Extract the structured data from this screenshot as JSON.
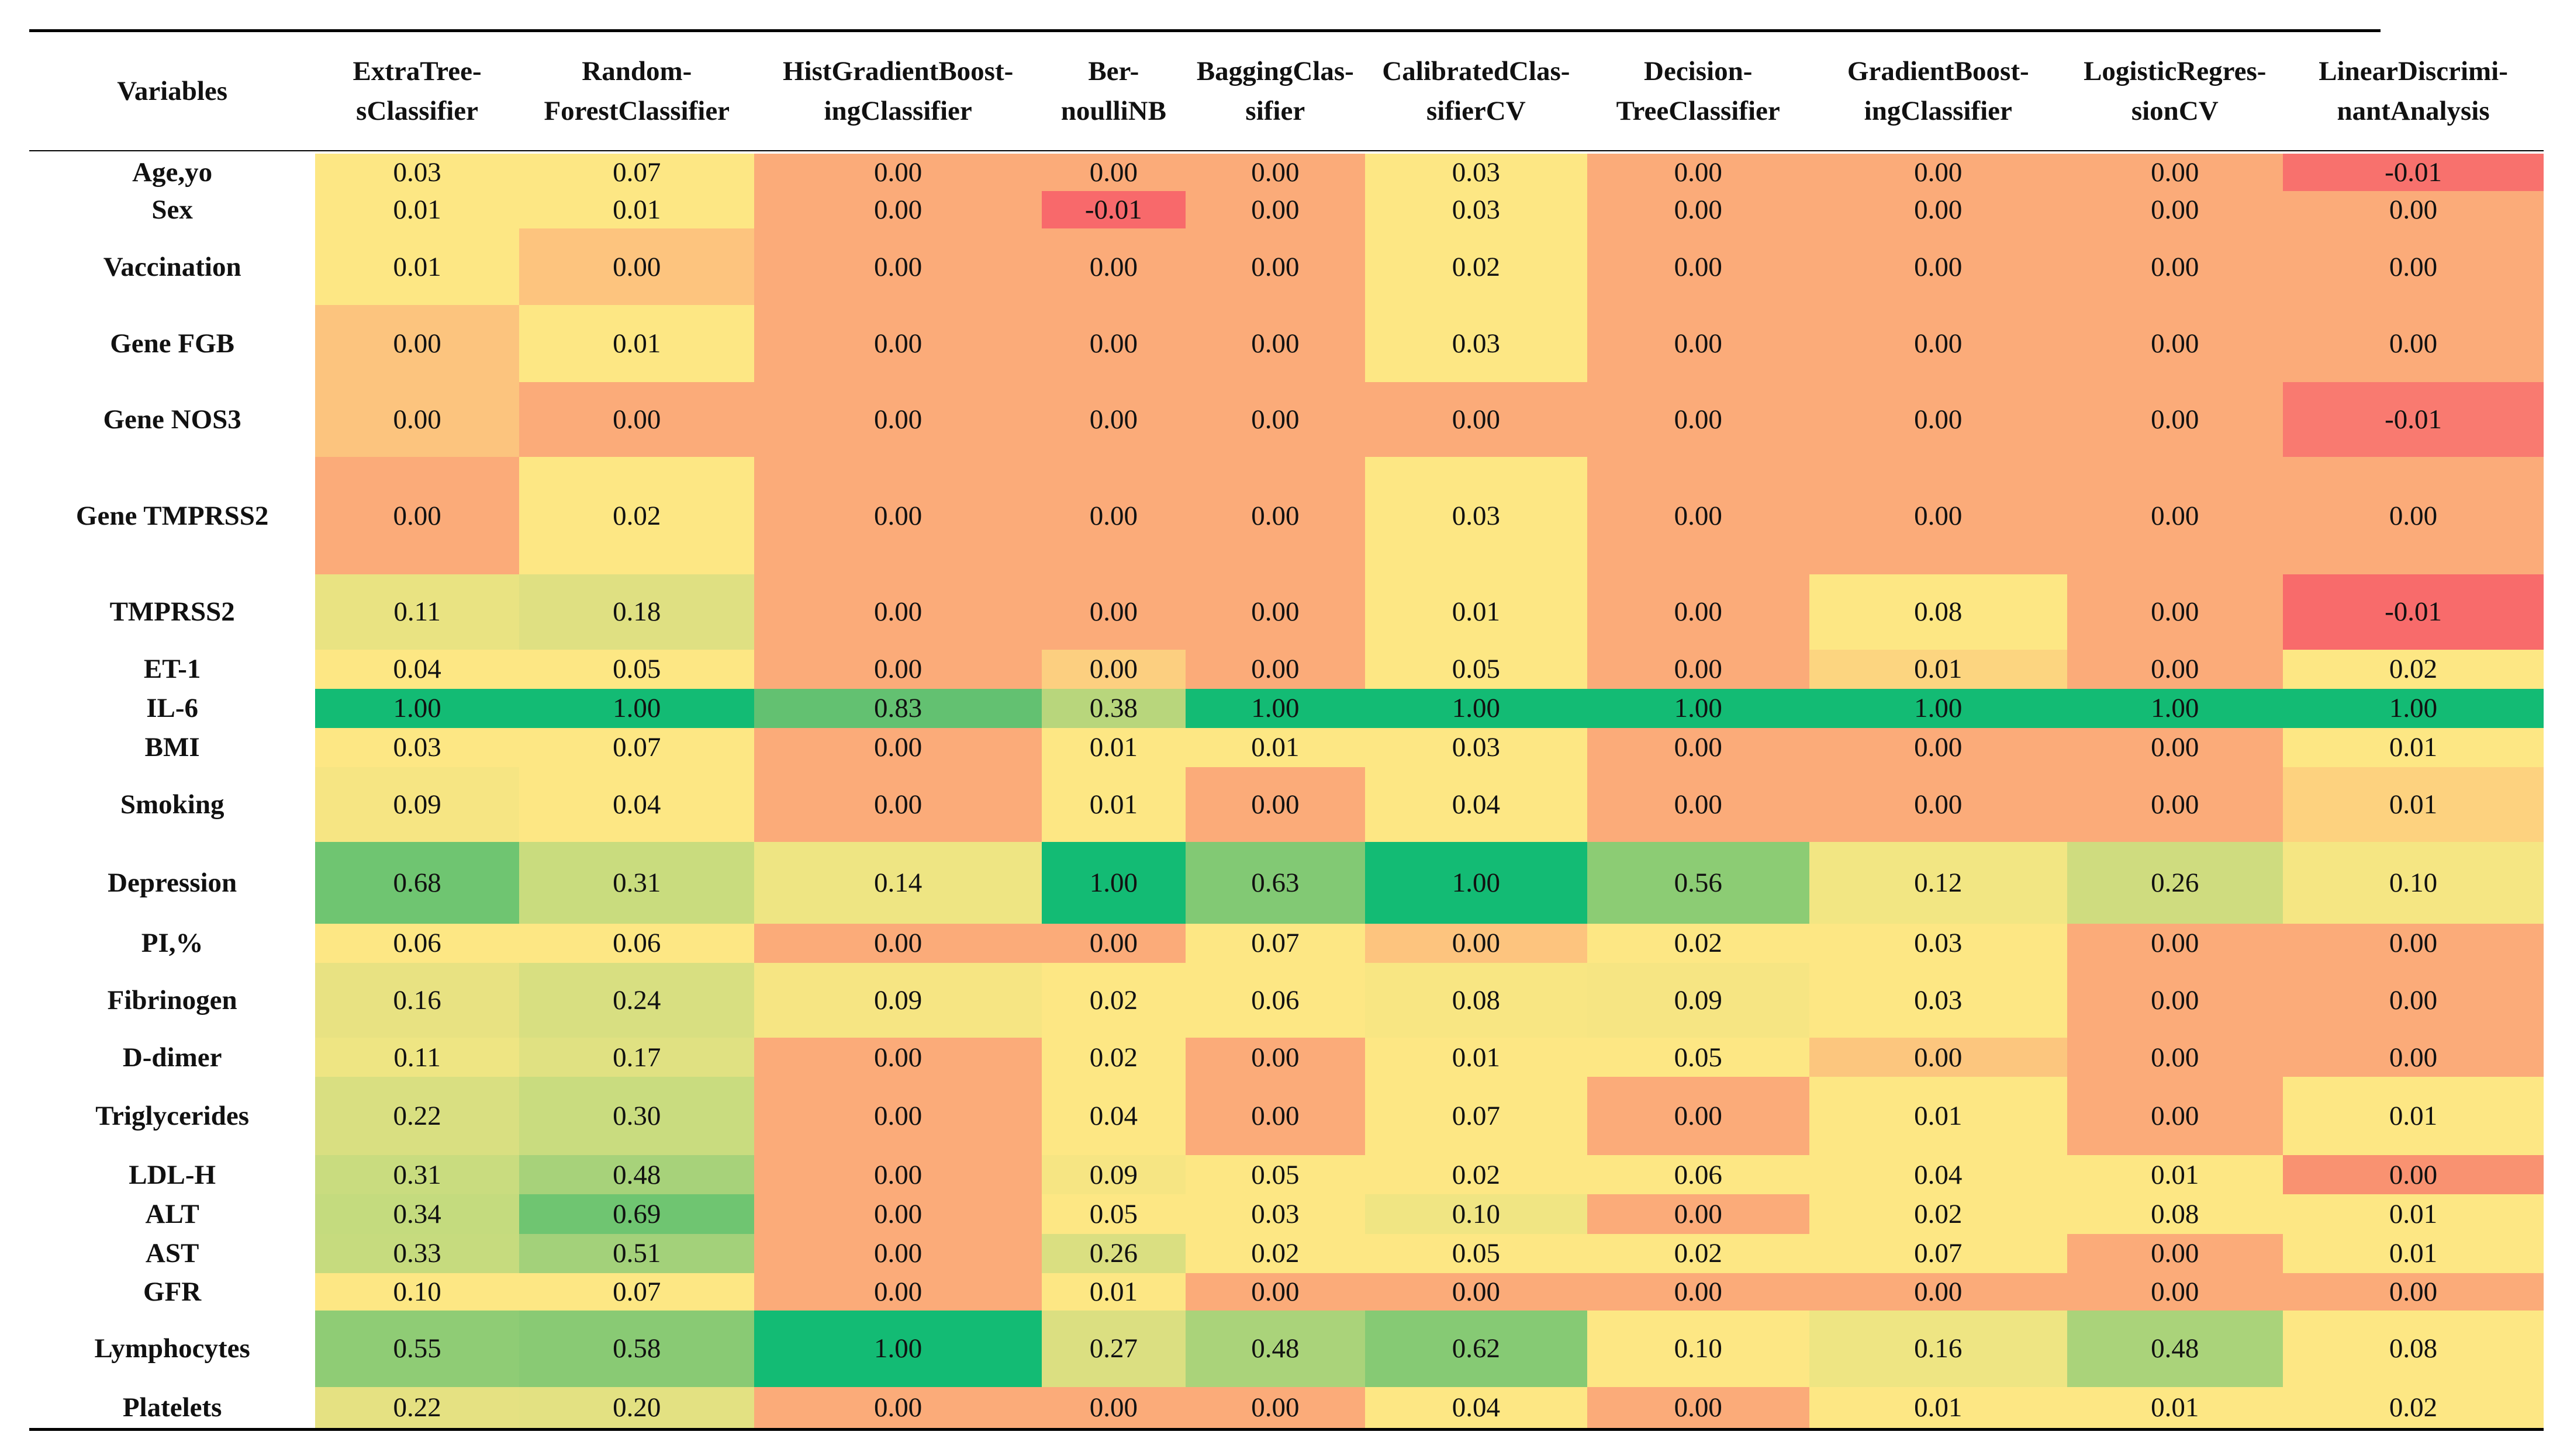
{
  "table": {
    "header": [
      [
        "Variables"
      ],
      [
        "ExtraTree-",
        "sClassifier"
      ],
      [
        "Random-",
        "ForestClassifier"
      ],
      [
        "HistGradientBoost-",
        "ingClassifier"
      ],
      [
        "Ber-",
        "noulliNB"
      ],
      [
        "BaggingClas-",
        "sifier"
      ],
      [
        "CalibratedClas-",
        "sifierCV"
      ],
      [
        "Decision-",
        "TreeClassifier"
      ],
      [
        "GradientBoost-",
        "ingClassifier"
      ],
      [
        "LogisticRegres-",
        "sionCV"
      ],
      [
        "LinearDiscrimi-",
        "nantAnalysis"
      ]
    ],
    "rows": [
      {
        "variable": "Age,yo",
        "values": [
          "0.03",
          "0.07",
          "0.00",
          "0.00",
          "0.00",
          "0.03",
          "0.00",
          "0.00",
          "0.00",
          "-0.01"
        ],
        "colors": [
          "#fde784",
          "#fde784",
          "#fbab79",
          "#fbab79",
          "#fbab79",
          "#fde784",
          "#fbab79",
          "#fbab79",
          "#fbab79",
          "#f8716d"
        ]
      },
      {
        "variable": "Sex",
        "values": [
          "0.01",
          "0.01",
          "0.00",
          "-0.01",
          "0.00",
          "0.03",
          "0.00",
          "0.00",
          "0.00",
          "0.00"
        ],
        "colors": [
          "#fde784",
          "#fde784",
          "#fbab79",
          "#f8696b",
          "#fbab79",
          "#fde784",
          "#fbab79",
          "#fbab79",
          "#fbab79",
          "#fbab79"
        ]
      },
      {
        "variable": "Vaccination",
        "values": [
          "0.01",
          "0.00",
          "0.00",
          "0.00",
          "0.00",
          "0.02",
          "0.00",
          "0.00",
          "0.00",
          "0.00"
        ],
        "colors": [
          "#fde784",
          "#fdc47e",
          "#fbab79",
          "#fbab79",
          "#fbab79",
          "#fde784",
          "#fbab79",
          "#fbab79",
          "#fbab79",
          "#fbab79"
        ]
      },
      {
        "variable": "Gene FGB",
        "values": [
          "0.00",
          "0.01",
          "0.00",
          "0.00",
          "0.00",
          "0.03",
          "0.00",
          "0.00",
          "0.00",
          "0.00"
        ],
        "colors": [
          "#fcc47e",
          "#fde784",
          "#fbab79",
          "#fbab79",
          "#fbab79",
          "#fde784",
          "#fbab79",
          "#fbab79",
          "#fbab79",
          "#fbab79"
        ]
      },
      {
        "variable": "Gene NOS3",
        "values": [
          "0.00",
          "0.00",
          "0.00",
          "0.00",
          "0.00",
          "0.00",
          "0.00",
          "0.00",
          "0.00",
          "-0.01"
        ],
        "colors": [
          "#fcc47e",
          "#fbab79",
          "#fbab79",
          "#fbab79",
          "#fbab79",
          "#fbab79",
          "#fbab79",
          "#fbab79",
          "#fbab79",
          "#f97a70"
        ]
      },
      {
        "variable": "Gene TMPRSS2",
        "values": [
          "0.00",
          "0.02",
          "0.00",
          "0.00",
          "0.00",
          "0.03",
          "0.00",
          "0.00",
          "0.00",
          "0.00"
        ],
        "colors": [
          "#fbab79",
          "#fde784",
          "#fbab79",
          "#fbab79",
          "#fbab79",
          "#fde784",
          "#fbab79",
          "#fbab79",
          "#fbab79",
          "#fbab79"
        ]
      },
      {
        "variable": "TMPRSS2",
        "values": [
          "0.11",
          "0.18",
          "0.00",
          "0.00",
          "0.00",
          "0.01",
          "0.00",
          "0.08",
          "0.00",
          "-0.01"
        ],
        "colors": [
          "#e9e382",
          "#dfe082",
          "#fbab79",
          "#fbab79",
          "#fbab79",
          "#fde784",
          "#fbab79",
          "#fde784",
          "#fbab79",
          "#f86b6b"
        ]
      },
      {
        "variable": "ET-1",
        "values": [
          "0.04",
          "0.05",
          "0.00",
          "0.00",
          "0.00",
          "0.05",
          "0.00",
          "0.01",
          "0.00",
          "0.02"
        ],
        "colors": [
          "#fde784",
          "#fde784",
          "#fbab79",
          "#fccf80",
          "#fbab79",
          "#fde784",
          "#fbab79",
          "#fcd580",
          "#fbab79",
          "#fde784"
        ]
      },
      {
        "variable": "IL-6",
        "values": [
          "1.00",
          "1.00",
          "0.83",
          "0.38",
          "1.00",
          "1.00",
          "1.00",
          "1.00",
          "1.00",
          "1.00"
        ],
        "colors": [
          "#13bb74",
          "#13bb74",
          "#63c171",
          "#b8d67c",
          "#13bb74",
          "#13bb74",
          "#13bb74",
          "#13bb74",
          "#13bb74",
          "#13bb74"
        ]
      },
      {
        "variable": "BMI",
        "values": [
          "0.03",
          "0.07",
          "0.00",
          "0.01",
          "0.01",
          "0.03",
          "0.00",
          "0.00",
          "0.00",
          "0.01"
        ],
        "colors": [
          "#fde784",
          "#fde784",
          "#fbab79",
          "#fde784",
          "#fde784",
          "#fde784",
          "#fbab79",
          "#fbab79",
          "#fbab79",
          "#fde784"
        ]
      },
      {
        "variable": "Smoking",
        "values": [
          "0.09",
          "0.04",
          "0.00",
          "0.01",
          "0.00",
          "0.04",
          "0.00",
          "0.00",
          "0.00",
          "0.01"
        ],
        "colors": [
          "#f6e583",
          "#fde784",
          "#fbab79",
          "#fde784",
          "#fbab79",
          "#fde784",
          "#fbab79",
          "#fbab79",
          "#fbab79",
          "#fdd27f"
        ]
      },
      {
        "variable": "Depression",
        "values": [
          "0.68",
          "0.31",
          "0.14",
          "1.00",
          "0.63",
          "1.00",
          "0.56",
          "0.12",
          "0.26",
          "0.10"
        ],
        "colors": [
          "#6fc571",
          "#c9dc7e",
          "#eee583",
          "#13bb74",
          "#82c974",
          "#13bb74",
          "#8ccc74",
          "#f2e683",
          "#cfdc7f",
          "#f5e683"
        ]
      },
      {
        "variable": "PI,%",
        "values": [
          "0.06",
          "0.06",
          "0.00",
          "0.00",
          "0.07",
          "0.00",
          "0.02",
          "0.03",
          "0.00",
          "0.00"
        ],
        "colors": [
          "#fde784",
          "#fde784",
          "#fbab79",
          "#fbab79",
          "#fde784",
          "#fdc47e",
          "#fde784",
          "#fde784",
          "#fbab79",
          "#fbab79"
        ]
      },
      {
        "variable": "Fibrinogen",
        "values": [
          "0.16",
          "0.24",
          "0.09",
          "0.02",
          "0.06",
          "0.08",
          "0.09",
          "0.03",
          "0.00",
          "0.00"
        ],
        "colors": [
          "#e8e282",
          "#d8df81",
          "#f6e583",
          "#fde784",
          "#fde784",
          "#f8e683",
          "#f6e583",
          "#fde784",
          "#fbab79",
          "#fbab79"
        ]
      },
      {
        "variable": "D-dimer",
        "values": [
          "0.11",
          "0.17",
          "0.00",
          "0.02",
          "0.00",
          "0.01",
          "0.05",
          "0.00",
          "0.00",
          "0.00"
        ],
        "colors": [
          "#eee583",
          "#e0e182",
          "#fbab79",
          "#fde784",
          "#fbab79",
          "#fde784",
          "#fde784",
          "#fcc67e",
          "#fbab79",
          "#fbab79"
        ]
      },
      {
        "variable": "Triglycerides",
        "values": [
          "0.22",
          "0.30",
          "0.00",
          "0.04",
          "0.00",
          "0.07",
          "0.00",
          "0.01",
          "0.00",
          "0.01"
        ],
        "colors": [
          "#d9df81",
          "#c9dc7f",
          "#fbab79",
          "#fde784",
          "#fbab79",
          "#fde784",
          "#fbab79",
          "#fde784",
          "#fbab79",
          "#fde784"
        ]
      },
      {
        "variable": "LDL-H",
        "values": [
          "0.31",
          "0.48",
          "0.00",
          "0.09",
          "0.05",
          "0.02",
          "0.06",
          "0.04",
          "0.01",
          "0.00"
        ],
        "colors": [
          "#c9dc7f",
          "#a7d27a",
          "#fbab79",
          "#f6e583",
          "#fde784",
          "#fde784",
          "#fde784",
          "#fde784",
          "#fde784",
          "#f99271"
        ]
      },
      {
        "variable": "ALT",
        "values": [
          "0.34",
          "0.69",
          "0.00",
          "0.05",
          "0.03",
          "0.10",
          "0.00",
          "0.02",
          "0.08",
          "0.01"
        ],
        "colors": [
          "#c4db7e",
          "#6fc571",
          "#fbab79",
          "#fde784",
          "#fde784",
          "#f0e583",
          "#fbab79",
          "#fde784",
          "#fde784",
          "#fde784"
        ]
      },
      {
        "variable": "AST",
        "values": [
          "0.33",
          "0.51",
          "0.00",
          "0.26",
          "0.02",
          "0.05",
          "0.02",
          "0.07",
          "0.00",
          "0.01"
        ],
        "colors": [
          "#c6db7e",
          "#a3d17a",
          "#fbab79",
          "#dadf81",
          "#fde784",
          "#fde784",
          "#fde784",
          "#fde784",
          "#fbab79",
          "#fde784"
        ]
      },
      {
        "variable": "GFR",
        "values": [
          "0.10",
          "0.07",
          "0.00",
          "0.01",
          "0.00",
          "0.00",
          "0.00",
          "0.00",
          "0.00",
          "0.00"
        ],
        "colors": [
          "#fde784",
          "#fde784",
          "#fbab79",
          "#fde784",
          "#fbab79",
          "#fbab79",
          "#fbab79",
          "#fbab79",
          "#fbab79",
          "#fbab79"
        ]
      },
      {
        "variable": "Lymphocytes",
        "values": [
          "0.55",
          "0.58",
          "1.00",
          "0.27",
          "0.48",
          "0.62",
          "0.10",
          "0.16",
          "0.48",
          "0.08"
        ],
        "colors": [
          "#8fcc75",
          "#89ca74",
          "#13bb74",
          "#dbdf81",
          "#aad37a",
          "#86ca74",
          "#fde784",
          "#eee583",
          "#aad37a",
          "#fde784"
        ]
      },
      {
        "variable": "Platelets",
        "values": [
          "0.22",
          "0.20",
          "0.00",
          "0.00",
          "0.00",
          "0.04",
          "0.00",
          "0.01",
          "0.01",
          "0.02"
        ],
        "colors": [
          "#e5e182",
          "#e3e182",
          "#fbab79",
          "#fbab79",
          "#fbab79",
          "#fde784",
          "#fbab79",
          "#fde784",
          "#fde784",
          "#fde784"
        ]
      }
    ]
  }
}
